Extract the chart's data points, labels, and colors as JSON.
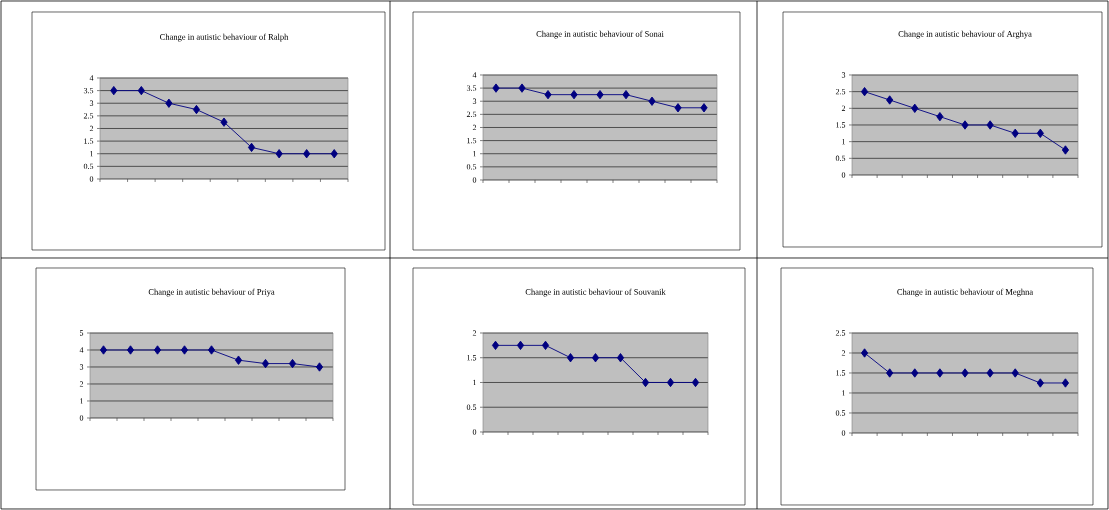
{
  "chart_data": [
    {
      "type": "line",
      "title": "Change in autistic behaviour of Ralph",
      "categories": [
        null,
        null,
        null,
        null,
        null,
        null,
        null,
        null,
        null
      ],
      "values": [
        3.5,
        3.5,
        3,
        2.75,
        2.25,
        1.25,
        1,
        1,
        1
      ],
      "color": "#000080",
      "marker": "diamond",
      "ylim": [
        0,
        4
      ],
      "yticks": [
        0,
        0.5,
        1,
        1.5,
        2,
        2.5,
        3,
        3.5,
        4
      ],
      "grid": "y",
      "tick_labels": "y"
    },
    {
      "type": "line",
      "title": "Change in autistic behaviour of Sonai",
      "categories": [
        null,
        null,
        null,
        null,
        null,
        null,
        null,
        null,
        null
      ],
      "values": [
        3.5,
        3.5,
        3.25,
        3.25,
        3.25,
        3.25,
        3,
        2.75,
        2.75
      ],
      "color": "#000080",
      "marker": "diamond",
      "ylim": [
        0,
        4
      ],
      "yticks": [
        0,
        0.5,
        1,
        1.5,
        2,
        2.5,
        3,
        3.5,
        4
      ],
      "grid": "y",
      "tick_labels": "y"
    },
    {
      "type": "line",
      "title": "Change in autistic behaviour of Arghya",
      "categories": [
        null,
        null,
        null,
        null,
        null,
        null,
        null,
        null,
        null
      ],
      "values": [
        2.5,
        2.25,
        2,
        1.75,
        1.5,
        1.5,
        1.25,
        1.25,
        0.75
      ],
      "color": "#000080",
      "marker": "diamond",
      "ylim": [
        0,
        3
      ],
      "yticks": [
        0,
        0.5,
        1,
        1.5,
        2,
        2.5,
        3
      ],
      "grid": "y",
      "tick_labels": "y"
    },
    {
      "type": "line",
      "title": "Change in autistic behaviour of Priya",
      "categories": [
        null,
        null,
        null,
        null,
        null,
        null,
        null,
        null,
        null
      ],
      "values": [
        4,
        4,
        4,
        4,
        4,
        3.4,
        3.2,
        3.2,
        3
      ],
      "color": "#000080",
      "marker": "diamond",
      "ylim": [
        0,
        5
      ],
      "yticks": [
        0,
        1,
        2,
        3,
        4,
        5
      ],
      "grid": "y",
      "tick_labels": "y"
    },
    {
      "type": "line",
      "title": "Change in autistic behaviour of Souvanik",
      "categories": [
        null,
        null,
        null,
        null,
        null,
        null,
        null,
        null,
        null
      ],
      "values": [
        1.75,
        1.75,
        1.75,
        1.5,
        1.5,
        1.5,
        1,
        1,
        1
      ],
      "color": "#000080",
      "marker": "diamond",
      "ylim": [
        0,
        2
      ],
      "yticks": [
        0,
        0.5,
        1,
        1.5,
        2
      ],
      "grid": "y",
      "tick_labels": "y"
    },
    {
      "type": "line",
      "title": "Change in autistic behaviour of Meghna",
      "categories": [
        null,
        null,
        null,
        null,
        null,
        null,
        null,
        null,
        null
      ],
      "values": [
        2,
        1.5,
        1.5,
        1.5,
        1.5,
        1.5,
        1.5,
        1.25,
        1.25
      ],
      "color": "#000080",
      "marker": "diamond",
      "ylim": [
        0,
        2.5
      ],
      "yticks": [
        0,
        0.5,
        1,
        1.5,
        2,
        2.5
      ],
      "grid": "y",
      "tick_labels": "y"
    }
  ]
}
